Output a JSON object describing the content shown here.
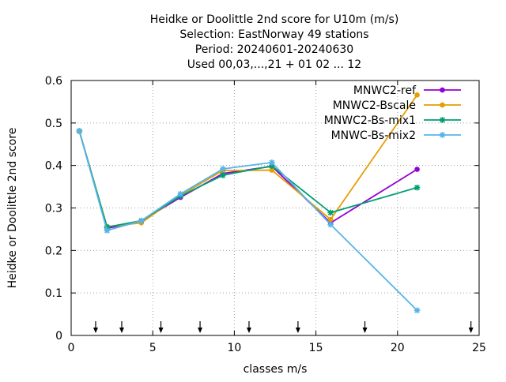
{
  "chart_data": {
    "type": "line",
    "title_lines": [
      "Heidke or Doolittle 2nd score  for U10m (m/s)",
      "Selection: EastNorway     49 stations",
      "Period: 20240601-20240630",
      "Used 00,03,...,21 + 01 02 ... 12"
    ],
    "xlabel": "classes m/s",
    "ylabel": "Heidke or Doolittle 2nd score",
    "xlim": [
      0,
      25
    ],
    "ylim": [
      0,
      0.6
    ],
    "xticks": [
      0,
      5,
      10,
      15,
      20,
      25
    ],
    "yticks": [
      0,
      0.1,
      0.2,
      0.3,
      0.4,
      0.5,
      0.6
    ],
    "xtick_labels": [
      "0",
      "5",
      "10",
      "15",
      "20",
      "25"
    ],
    "ytick_labels": [
      "0",
      "0.1",
      "0.2",
      "0.3",
      "0.4",
      "0.5",
      "0.6"
    ],
    "grid": true,
    "legend_position": "top-right",
    "class_markers_x": [
      1.5,
      3.1,
      5.5,
      7.9,
      10.9,
      13.9,
      18.0,
      24.5
    ],
    "x": [
      0.5,
      2.2,
      4.3,
      6.7,
      9.3,
      12.3,
      15.9,
      21.2
    ],
    "series": [
      {
        "name": "MNWC2-ref",
        "color": "#9400d3",
        "marker": "circle",
        "values": [
          0.481,
          0.252,
          0.269,
          0.325,
          0.381,
          0.398,
          0.265,
          0.391
        ]
      },
      {
        "name": "MNWC2-Bscale",
        "color": "#e69f00",
        "marker": "circle",
        "values": [
          0.481,
          0.256,
          0.265,
          0.33,
          0.388,
          0.389,
          0.273,
          0.566
        ]
      },
      {
        "name": "MNWC2-Bs-mix1",
        "color": "#009e73",
        "marker": "star",
        "values": [
          0.481,
          0.255,
          0.27,
          0.328,
          0.377,
          0.399,
          0.289,
          0.348
        ]
      },
      {
        "name": "MNWC-Bs-mix2",
        "color": "#56b4e9",
        "marker": "star",
        "values": [
          0.481,
          0.247,
          0.27,
          0.333,
          0.392,
          0.407,
          0.261,
          0.059
        ]
      }
    ]
  }
}
